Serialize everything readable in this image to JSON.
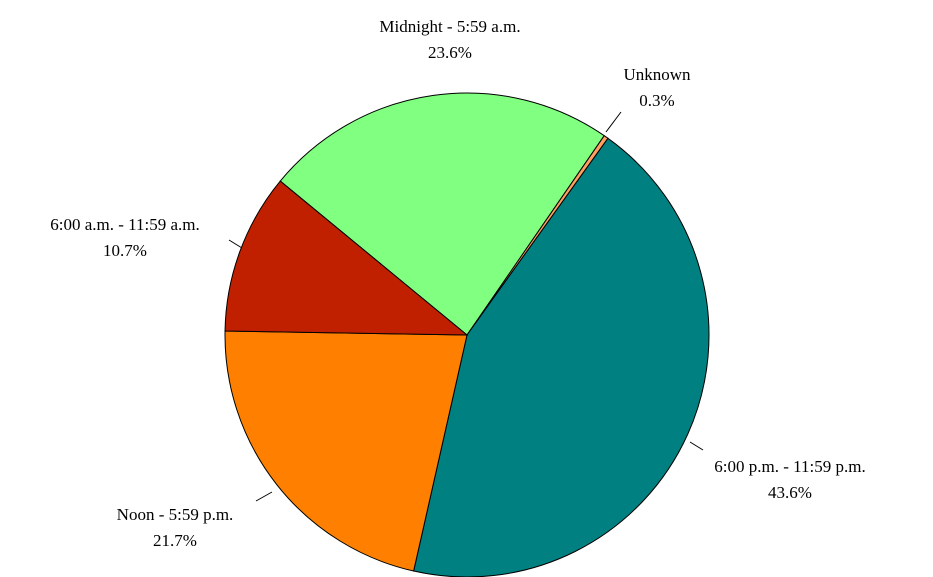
{
  "chart_data": {
    "type": "pie",
    "categories": [
      "Midnight - 5:59 a.m.",
      "Unknown",
      "6:00 p.m. - 11:59 p.m.",
      "Noon - 5:59 p.m.",
      "6:00 a.m. - 11:59 a.m."
    ],
    "values": [
      23.6,
      0.3,
      43.6,
      21.7,
      10.7
    ],
    "value_labels": [
      "23.6%",
      "0.3%",
      "43.6%",
      "21.7%",
      "10.7%"
    ],
    "colors": [
      "#80ff80",
      "#ffa060",
      "#008080",
      "#ff8000",
      "#c02000"
    ]
  }
}
